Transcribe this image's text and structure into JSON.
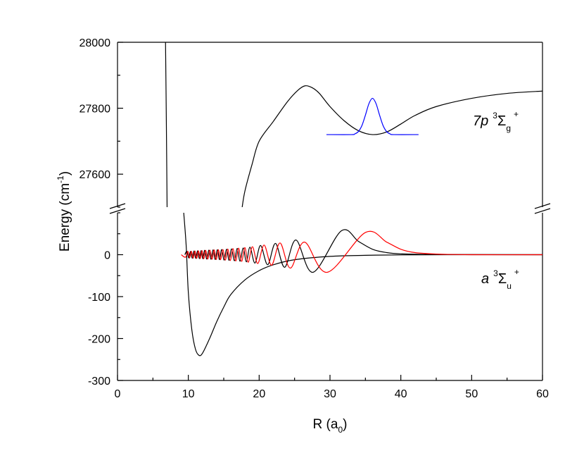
{
  "chart_data": [
    {
      "type": "line",
      "ylabel": {
        "text": "Energy (cm",
        "superscript": "-1",
        "suffix": ")"
      },
      "xlim": [
        0,
        60
      ],
      "ylim": [
        27500,
        28000
      ],
      "yticks": [
        27600,
        27800,
        28000
      ],
      "yminorticks": [
        27500,
        27700,
        27900
      ],
      "annotation": {
        "state": "7p",
        "multiplicity": "3",
        "symbol": "Σ",
        "subscript": "g",
        "superscript": "+"
      },
      "series": [
        {
          "color": "#000000",
          "x": [
            6.78,
            6.9,
            7.0,
            12,
            17.6,
            18,
            19,
            20,
            22,
            24,
            25.5,
            26.5,
            27.5,
            28.5,
            30,
            32,
            34,
            36,
            38,
            40,
            42,
            45,
            50,
            55,
            60
          ],
          "values": [
            28000,
            27750,
            27500,
            null,
            27500,
            27550,
            27630,
            27700,
            27760,
            27820,
            27855,
            27868,
            27862,
            27845,
            27805,
            27762,
            27732,
            27720,
            27728,
            27752,
            27778,
            27805,
            27830,
            27845,
            27852
          ]
        },
        {
          "color": "#0000ff",
          "x": [
            29.5,
            33,
            33.5,
            34,
            34.5,
            35,
            35.5,
            36,
            36.5,
            37,
            37.5,
            38,
            38.5,
            39,
            42.5
          ],
          "values": [
            27720,
            27720,
            27722,
            27729,
            27747,
            27779,
            27814,
            27830,
            27814,
            27779,
            27747,
            27729,
            27722,
            27720,
            27720
          ]
        }
      ]
    },
    {
      "type": "line",
      "xlabel": {
        "text": "R (a",
        "subscript": "0",
        "suffix": ")"
      },
      "xlim": [
        0,
        60
      ],
      "ylim": [
        -300,
        100
      ],
      "xticks": [
        0,
        10,
        20,
        30,
        40,
        50,
        60
      ],
      "xminorticks": [
        5,
        15,
        25,
        35,
        45,
        55
      ],
      "yticks": [
        -300,
        -200,
        -100,
        0
      ],
      "yminorticks": [
        -250,
        -150,
        -50,
        50,
        100
      ],
      "annotation": {
        "state": "a",
        "multiplicity": "3",
        "symbol": "Σ",
        "subscript": "u",
        "superscript": "+"
      },
      "series": [
        {
          "color": "#000000",
          "x": [
            9.35,
            9.7,
            10,
            10.5,
            11,
            11.5,
            12,
            13,
            14,
            15,
            16,
            18,
            20,
            22,
            25,
            30,
            35,
            40,
            50,
            60
          ],
          "values": [
            100,
            20,
            -90,
            -180,
            -225,
            -240,
            -235,
            -200,
            -160,
            -125,
            -95,
            -60,
            -38,
            -24,
            -12,
            -4,
            -1.5,
            -0.5,
            0,
            0
          ]
        },
        {
          "color": "#000000",
          "x": [
            9.5,
            9.8,
            10.05,
            10.3,
            10.55,
            10.8,
            11.05,
            11.3,
            11.55,
            11.8,
            12.05,
            12.3,
            12.6,
            12.9,
            13.2,
            13.5,
            13.8,
            14.1,
            14.4,
            14.7,
            15.05,
            15.4,
            15.75,
            16.1,
            16.5,
            16.9,
            17.3,
            17.75,
            18.2,
            18.7,
            19.4,
            20.2,
            21.2,
            22.3,
            23.6,
            25.2,
            27.6,
            31.6,
            34,
            36,
            38,
            40,
            45,
            60
          ],
          "values": [
            0,
            8,
            -8,
            8,
            -8.5,
            9,
            -9,
            9.5,
            -9.5,
            10,
            -10,
            10.5,
            -10.5,
            11,
            -11,
            11.5,
            -11.5,
            12,
            -12,
            12.5,
            -13,
            13,
            -13.5,
            14,
            -14.5,
            15,
            -15.5,
            16,
            -17,
            18,
            -20,
            22,
            -24,
            27,
            -30,
            35,
            -42,
            57,
            32,
            13,
            5,
            2,
            0.5,
            0
          ]
        },
        {
          "color": "#ff0000",
          "x": [
            9.0,
            9.6,
            9.93,
            10.18,
            10.43,
            10.68,
            10.93,
            11.18,
            11.43,
            11.68,
            11.93,
            12.18,
            12.45,
            12.75,
            13.05,
            13.35,
            13.65,
            13.95,
            14.25,
            14.55,
            14.88,
            15.23,
            15.58,
            15.93,
            16.3,
            16.7,
            17.1,
            17.53,
            17.98,
            18.45,
            19.05,
            19.8,
            20.7,
            21.75,
            22.95,
            24.4,
            26.4,
            29.6,
            35.0,
            38,
            40,
            42,
            45,
            50,
            60
          ],
          "values": [
            0,
            -6,
            8,
            -8,
            8.5,
            -8.5,
            9,
            -9,
            9.5,
            -9.5,
            10,
            -10,
            10.5,
            -10.5,
            11,
            -11,
            11.5,
            -11.5,
            12,
            -12,
            12.5,
            -13,
            13.5,
            -14,
            14.5,
            -15,
            15.5,
            -16,
            17,
            -18,
            19,
            -21,
            23,
            -25,
            28,
            -32,
            30,
            -42,
            53,
            30,
            13,
            5,
            1.5,
            0,
            0
          ]
        }
      ]
    }
  ]
}
